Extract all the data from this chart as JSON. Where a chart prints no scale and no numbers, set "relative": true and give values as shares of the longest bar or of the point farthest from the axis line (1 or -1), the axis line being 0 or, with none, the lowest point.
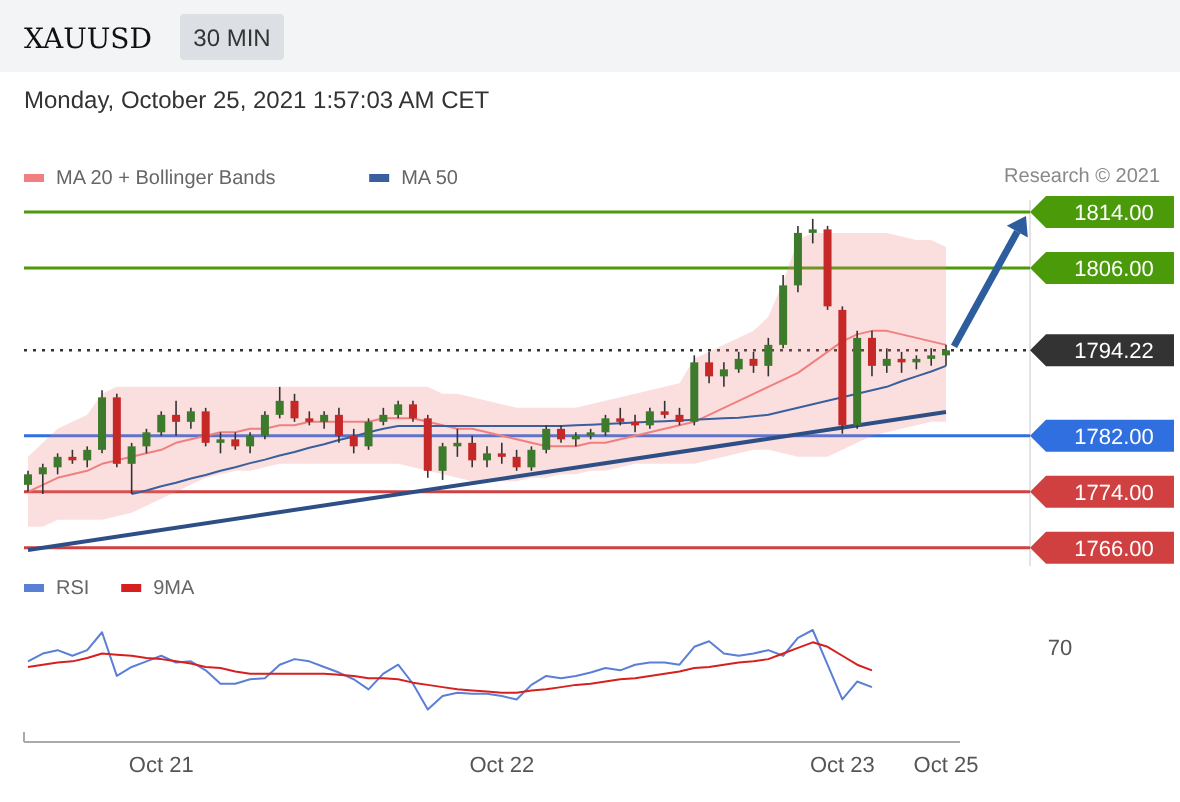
{
  "chart_data": [
    {
      "type": "candlestick",
      "title": "XAUUSD",
      "subtitle": "30 MIN",
      "annotations": [
        "Monday, October 25, 2021 1:57:03 AM CET",
        "Research © 2021"
      ],
      "categories": [
        null,
        null,
        null,
        null,
        null,
        null,
        null,
        null,
        null,
        null,
        null,
        null,
        null,
        null,
        null,
        null,
        null,
        null,
        null,
        null,
        null,
        null,
        null,
        null,
        null,
        null,
        null,
        null,
        null,
        null,
        null,
        null,
        null,
        null,
        null,
        null,
        null,
        null,
        null,
        null,
        null,
        null,
        null,
        null,
        null,
        null,
        null,
        null,
        null,
        null,
        null,
        null,
        null,
        null,
        null,
        null,
        null,
        null,
        null,
        null,
        null,
        null,
        null
      ],
      "ylim": [
        1763.4,
        1815.7
      ],
      "yticks": [
        {
          "value": 1814,
          "label": "1814.00"
        },
        {
          "value": 1806,
          "label": "1806.00"
        },
        {
          "value": 1794.22,
          "label": "1794.22"
        },
        {
          "value": 1782,
          "label": "1782.00"
        },
        {
          "value": 1774,
          "label": "1774.00"
        },
        {
          "value": 1766,
          "label": "1766.00"
        }
      ],
      "tick_labels": "y",
      "legend": "top left",
      "series": [
        {
          "ohlc": [
            [
              1775,
              1777,
              1774,
              1776.5
            ],
            [
              1776.5,
              1778,
              1773.7,
              1777.5
            ],
            [
              1777.5,
              1779.5,
              1776.5,
              1779
            ],
            [
              1779,
              1780,
              1778,
              1778.5
            ],
            [
              1778.5,
              1780.5,
              1777.5,
              1780
            ],
            [
              1780,
              1788.5,
              1779.5,
              1787.5
            ],
            [
              1787.5,
              1788,
              1777.5,
              1778
            ],
            [
              1778,
              1781,
              1773.7,
              1780.5
            ],
            [
              1780.5,
              1783,
              1779.5,
              1782.5
            ],
            [
              1782.5,
              1785.5,
              1782,
              1785
            ],
            [
              1785,
              1787,
              1782,
              1784
            ],
            [
              1784,
              1786,
              1783,
              1785.5
            ],
            [
              1785.5,
              1786,
              1780.5,
              1781
            ],
            [
              1781,
              1782.5,
              1779.5,
              1781.5
            ],
            [
              1781.5,
              1782.5,
              1780,
              1780.5
            ],
            [
              1780.5,
              1782.5,
              1779.5,
              1782
            ],
            [
              1782,
              1785.5,
              1781.5,
              1785
            ],
            [
              1785,
              1789,
              1784.5,
              1787
            ],
            [
              1787,
              1788,
              1784,
              1784.5
            ],
            [
              1784.5,
              1785.5,
              1783.5,
              1784
            ],
            [
              1784,
              1785.5,
              1783,
              1785
            ],
            [
              1785,
              1786,
              1781,
              1782
            ],
            [
              1782,
              1783,
              1779.5,
              1780.5
            ],
            [
              1780.5,
              1784.5,
              1780,
              1784
            ],
            [
              1784,
              1786,
              1783.5,
              1785
            ],
            [
              1785,
              1787,
              1784.5,
              1786.5
            ],
            [
              1786.5,
              1787,
              1784,
              1784.5
            ],
            [
              1784.5,
              1785,
              1776,
              1777
            ],
            [
              1777,
              1781,
              1775.7,
              1780.5
            ],
            [
              1780.5,
              1783,
              1779,
              1781
            ],
            [
              1781,
              1782,
              1777.5,
              1778.5
            ],
            [
              1778.5,
              1780.5,
              1777.5,
              1779.5
            ],
            [
              1779.5,
              1781,
              1778,
              1779
            ],
            [
              1779,
              1780,
              1777,
              1777.5
            ],
            [
              1777.5,
              1780.5,
              1777,
              1780
            ],
            [
              1780,
              1783.5,
              1779.5,
              1783
            ],
            [
              1783,
              1783.5,
              1781,
              1781.5
            ],
            [
              1781.5,
              1782.5,
              1780.5,
              1782
            ],
            [
              1782,
              1783,
              1781.5,
              1782.5
            ],
            [
              1782.5,
              1785,
              1782,
              1784.5
            ],
            [
              1784.5,
              1786,
              1783.5,
              1784
            ],
            [
              1784,
              1785,
              1782.5,
              1783.5
            ],
            [
              1783.5,
              1786,
              1783,
              1785.5
            ],
            [
              1785.5,
              1787,
              1784.5,
              1785
            ],
            [
              1785,
              1786,
              1783.5,
              1784
            ],
            [
              1784,
              1793.5,
              1783.5,
              1792.5
            ],
            [
              1792.5,
              1794,
              1789.5,
              1790.5
            ],
            [
              1790.5,
              1792.5,
              1789,
              1791.5
            ],
            [
              1791.5,
              1794,
              1791,
              1793
            ],
            [
              1793,
              1794,
              1791,
              1792
            ],
            [
              1792,
              1796,
              1790.5,
              1795
            ],
            [
              1795,
              1805,
              1794.5,
              1803.5
            ],
            [
              1803.5,
              1812,
              1802.5,
              1811
            ],
            [
              1811,
              1813,
              1809.5,
              1811.5
            ],
            [
              1811.5,
              1812,
              1800,
              1800.5
            ],
            [
              1800,
              1800.5,
              1782.3,
              1783.5
            ],
            [
              1783.5,
              1797,
              1783,
              1796
            ],
            [
              1796,
              1797,
              1790.5,
              1792
            ],
            [
              1792,
              1794.5,
              1791,
              1793
            ],
            [
              1793,
              1794,
              1791,
              1792.5
            ],
            [
              1792.5,
              1793.5,
              1791.5,
              1793
            ],
            [
              1793,
              1794.5,
              1792,
              1793.5
            ],
            [
              1793.5,
              1795,
              1792,
              1794.22
            ]
          ]
        },
        {
          "type": "line",
          "name": "MA 20 + Bollinger Bands",
          "color": "#f08080",
          "values": [
            1774,
            1775,
            1776,
            1776.5,
            1777,
            1778,
            1778.5,
            1779,
            1779.5,
            1780,
            1781,
            1781.5,
            1782,
            1782.5,
            1782.5,
            1783,
            1783,
            1783.5,
            1783.5,
            1784,
            1784,
            1784,
            1784,
            1784,
            1784.5,
            1784.5,
            1784.5,
            1784,
            1783.5,
            1783,
            1783,
            1782.5,
            1782,
            1781.5,
            1781,
            1780.5,
            1780.5,
            1780.5,
            1781,
            1781,
            1781.5,
            1782,
            1782.5,
            1783,
            1783.5,
            1784,
            1785,
            1786,
            1787,
            1788,
            1789,
            1790,
            1791,
            1792.5,
            1794,
            1795.5,
            1796.5,
            1797,
            1797,
            1796.5,
            1796,
            1795.5,
            1795
          ],
          "upper": [
            1779,
            1781,
            1783,
            1784,
            1785,
            1788,
            1789,
            1789,
            1789,
            1789,
            1789,
            1789,
            1789,
            1789,
            1789,
            1789,
            1789,
            1789,
            1789,
            1789,
            1789,
            1789,
            1789,
            1789,
            1789,
            1789,
            1789,
            1789,
            1788,
            1788,
            1787.5,
            1787,
            1786.5,
            1786,
            1786,
            1786,
            1786,
            1786,
            1786.5,
            1787,
            1787.5,
            1788,
            1788.5,
            1789,
            1789.5,
            1793,
            1794,
            1795,
            1796,
            1797,
            1799,
            1804,
            1810,
            1811,
            1811,
            1811,
            1811,
            1811,
            1811,
            1810.5,
            1810,
            1810,
            1809
          ],
          "lower": [
            1769,
            1769,
            1770,
            1770,
            1770,
            1770,
            1770.5,
            1771,
            1772,
            1773,
            1774,
            1775,
            1776,
            1776.5,
            1777,
            1777,
            1777.5,
            1778,
            1778,
            1778,
            1778,
            1778,
            1778,
            1778,
            1778,
            1778,
            1777.5,
            1777,
            1776.5,
            1776,
            1775.5,
            1775.5,
            1775.5,
            1775.5,
            1776,
            1776,
            1776.5,
            1776.5,
            1777,
            1777,
            1777.5,
            1778,
            1778,
            1778,
            1778,
            1778,
            1778.5,
            1779,
            1779.5,
            1780,
            1780,
            1779.5,
            1779,
            1779,
            1779,
            1780,
            1781,
            1782,
            1782.5,
            1783,
            1783.5,
            1784,
            1784
          ]
        },
        {
          "type": "line",
          "name": "MA 50",
          "color": "#3a5f9e",
          "values": [
            null,
            null,
            null,
            null,
            null,
            null,
            null,
            1773.7,
            1774.2,
            1774.8,
            1775.3,
            1775.9,
            1776.4,
            1777,
            1777.5,
            1778.1,
            1778.6,
            1779.2,
            1779.7,
            1780.3,
            1780.8,
            1781.4,
            1781.9,
            1782.5,
            1783,
            1783.4,
            1783.4,
            1783.4,
            1783.4,
            1783.4,
            1783.4,
            1783.4,
            1783.4,
            1783.4,
            1783.4,
            1783.4,
            1783.4,
            1783.5,
            1783.6,
            1783.7,
            1783.8,
            1783.9,
            1784,
            1784.1,
            1784.2,
            1784.3,
            1784.4,
            1784.5,
            1784.6,
            1784.8,
            1785,
            1785.5,
            1786,
            1786.5,
            1787,
            1787.5,
            1788,
            1788.5,
            1789,
            1789.8,
            1790.5,
            1791.2,
            1792
          ]
        },
        {
          "type": "line",
          "color": "#2e4f86",
          "values": [
            1765.7,
            null,
            null,
            null,
            null,
            null,
            null,
            null,
            null,
            null,
            null,
            null,
            null,
            null,
            null,
            null,
            null,
            null,
            null,
            null,
            null,
            null,
            null,
            null,
            null,
            null,
            null,
            null,
            null,
            null,
            null,
            null,
            null,
            null,
            null,
            null,
            null,
            null,
            null,
            null,
            null,
            null,
            null,
            null,
            null,
            null,
            null,
            null,
            null,
            null,
            null,
            null,
            null,
            null,
            null,
            null,
            null,
            null,
            null,
            null,
            null,
            null,
            1785.4
          ]
        }
      ],
      "ref_lines": [
        {
          "axis": "y",
          "value": 1814,
          "color": "#4a9a0a"
        },
        {
          "axis": "y",
          "value": 1806,
          "color": "#4a9a0a"
        },
        {
          "axis": "y",
          "value": 1794.22,
          "color": "#333333",
          "line_style": "dotted"
        },
        {
          "axis": "y",
          "value": 1782,
          "color": "#2f6fe0"
        },
        {
          "axis": "y",
          "value": 1774,
          "color": "#d04040"
        },
        {
          "axis": "y",
          "value": 1766,
          "color": "#d04040"
        }
      ]
    },
    {
      "type": "line",
      "relative": true,
      "categories": [
        null,
        null,
        null,
        null,
        null,
        null,
        null,
        null,
        null,
        "Oct 21",
        null,
        null,
        null,
        null,
        null,
        null,
        null,
        null,
        null,
        null,
        null,
        null,
        null,
        null,
        null,
        null,
        null,
        null,
        null,
        null,
        null,
        null,
        "Oct 22",
        null,
        null,
        null,
        null,
        null,
        null,
        null,
        null,
        null,
        null,
        null,
        null,
        null,
        null,
        null,
        null,
        null,
        null,
        null,
        null,
        null,
        null,
        "Oct 23",
        null,
        null,
        null,
        null,
        null,
        null,
        "Oct 25"
      ],
      "legend": "top left",
      "annotations": [
        "70"
      ],
      "series": [
        {
          "name": "RSI",
          "color": "#5b7fd6",
          "values": [
            0.72,
            0.79,
            0.82,
            0.77,
            0.82,
            0.98,
            0.59,
            0.67,
            0.72,
            0.77,
            0.71,
            0.72,
            0.64,
            0.52,
            0.52,
            0.56,
            0.57,
            0.69,
            0.74,
            0.72,
            0.67,
            0.62,
            0.56,
            0.47,
            0.61,
            0.69,
            0.52,
            0.29,
            0.41,
            0.44,
            0.43,
            0.43,
            0.41,
            0.38,
            0.51,
            0.59,
            0.57,
            0.59,
            0.62,
            0.66,
            0.64,
            0.69,
            0.71,
            0.71,
            0.69,
            0.85,
            0.9,
            0.79,
            0.77,
            0.79,
            0.82,
            0.77,
            0.93,
            1,
            0.69,
            0.38,
            0.54,
            0.49,
            null,
            null,
            null,
            null,
            null
          ]
        },
        {
          "name": "9MA",
          "color": "#d62020",
          "values": [
            0.67,
            0.69,
            0.71,
            0.72,
            0.75,
            0.79,
            0.78,
            0.77,
            0.75,
            0.74,
            0.72,
            0.7,
            0.67,
            0.66,
            0.63,
            0.61,
            0.61,
            0.61,
            0.61,
            0.61,
            0.61,
            0.6,
            0.59,
            0.57,
            0.57,
            0.56,
            0.53,
            0.51,
            0.49,
            0.47,
            0.46,
            0.45,
            0.44,
            0.44,
            0.46,
            0.47,
            0.49,
            0.51,
            0.52,
            0.54,
            0.56,
            0.57,
            0.59,
            0.61,
            0.63,
            0.66,
            0.67,
            0.69,
            0.71,
            0.72,
            0.74,
            0.79,
            0.84,
            0.89,
            0.85,
            0.77,
            0.69,
            0.64,
            null,
            null,
            null,
            null,
            null
          ]
        }
      ]
    }
  ]
}
